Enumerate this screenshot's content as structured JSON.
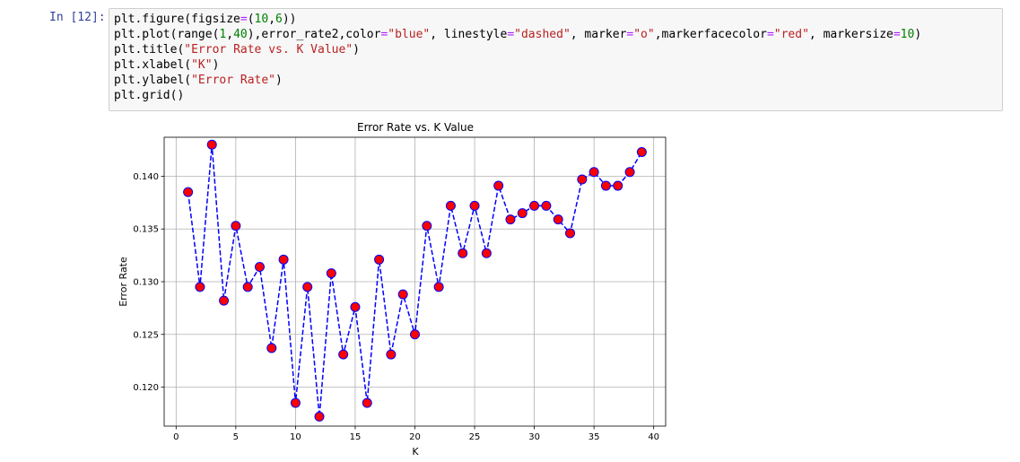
{
  "prompt": "In [12]:",
  "code": {
    "line1": {
      "a": "plt.figure(figsize",
      "b": "=",
      "c": "(",
      "d": "10",
      "e": ",",
      "f": "6",
      "g": "))"
    },
    "line2": {
      "p1": "plt.plot(range(",
      "n1": "1",
      "p2": ",",
      "n2": "40",
      "p3": "),error_rate2,color",
      "o1": "=",
      "s1": "\"blue\"",
      "p4": ", linestyle",
      "o2": "=",
      "s2": "\"dashed\"",
      "p5": ", marker",
      "o3": "=",
      "s3": "\"o\"",
      "p6": ",markerfacecolor",
      "o4": "=",
      "s4": "\"red\"",
      "p7": ", markersize",
      "o5": "=",
      "n3": "10",
      "p8": ")"
    },
    "line3": {
      "a": "plt.title(",
      "s": "\"Error Rate vs. K Value\"",
      "b": ")"
    },
    "line4": {
      "a": "plt.xlabel(",
      "s": "\"K\"",
      "b": ")"
    },
    "line5": {
      "a": "plt.ylabel(",
      "s": "\"Error Rate\"",
      "b": ")"
    },
    "line6": {
      "a": "plt.grid()"
    }
  },
  "chart_data": {
    "type": "line",
    "title": "Error Rate vs. K Value",
    "xlabel": "K",
    "ylabel": "Error Rate",
    "xlim": [
      -1,
      41
    ],
    "ylim": [
      0.1163,
      0.1437
    ],
    "xticks": [
      0,
      5,
      10,
      15,
      20,
      25,
      30,
      35,
      40
    ],
    "xtick_labels": [
      "0",
      "5",
      "10",
      "15",
      "20",
      "25",
      "30",
      "35",
      "40"
    ],
    "yticks": [
      0.12,
      0.125,
      0.13,
      0.135,
      0.14
    ],
    "ytick_labels": [
      "0.120",
      "0.125",
      "0.130",
      "0.135",
      "0.140"
    ],
    "grid": true,
    "line_color": "#0000ff",
    "line_style": "dashed",
    "marker_face_color": "#ff0000",
    "x": [
      1,
      2,
      3,
      4,
      5,
      6,
      7,
      8,
      9,
      10,
      11,
      12,
      13,
      14,
      15,
      16,
      17,
      18,
      19,
      20,
      21,
      22,
      23,
      24,
      25,
      26,
      27,
      28,
      29,
      30,
      31,
      32,
      33,
      34,
      35,
      36,
      37,
      38,
      39
    ],
    "series": [
      {
        "values": [
          0.1385,
          0.1295,
          0.143,
          0.1282,
          0.1353,
          0.1295,
          0.1314,
          0.1237,
          0.1321,
          0.1185,
          0.1295,
          0.1172,
          0.1308,
          0.1231,
          0.1276,
          0.1185,
          0.1321,
          0.1231,
          0.1288,
          0.125,
          0.1353,
          0.1295,
          0.1372,
          0.1327,
          0.1372,
          0.1327,
          0.1391,
          0.1359,
          0.1365,
          0.1372,
          0.1372,
          0.1359,
          0.1346,
          0.1397,
          0.1404,
          0.1391,
          0.1391,
          0.1404,
          0.1423
        ]
      }
    ]
  }
}
